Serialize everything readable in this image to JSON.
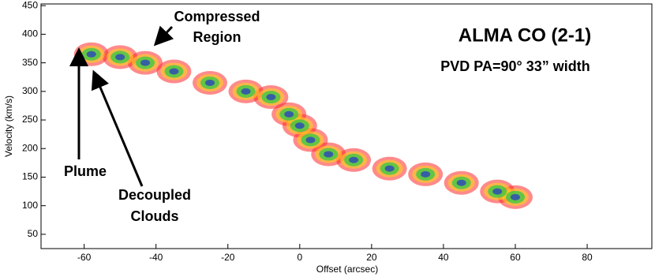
{
  "chart_data": {
    "type": "pv",
    "title": "ALMA CO (2-1)",
    "subtitle": "PVD PA=90°  33” width",
    "x_label": "Offset (arcsec)",
    "y_label": "Velocity (km/s)",
    "annotations": [
      "Compressed",
      "Region",
      "Plume",
      "Decoupled",
      "Clouds"
    ],
    "x": [
      -58,
      -50,
      -43,
      -35,
      -25,
      -15,
      -8,
      -3,
      0,
      3,
      8,
      15,
      25,
      35,
      45,
      55,
      60
    ],
    "series": [
      {
        "color": "#22cc44",
        "values": [
          365,
          360,
          350,
          335,
          315,
          300,
          290,
          260,
          240,
          215,
          190,
          180,
          165,
          155,
          140,
          125,
          115
        ]
      }
    ],
    "xlim": [
      -72,
      98
    ],
    "ylim": [
      25,
      453
    ],
    "xticks": [
      -60,
      -40,
      -20,
      0,
      20,
      40,
      60,
      80
    ],
    "yticks": [
      50,
      100,
      150,
      200,
      250,
      300,
      350,
      400,
      450
    ]
  }
}
